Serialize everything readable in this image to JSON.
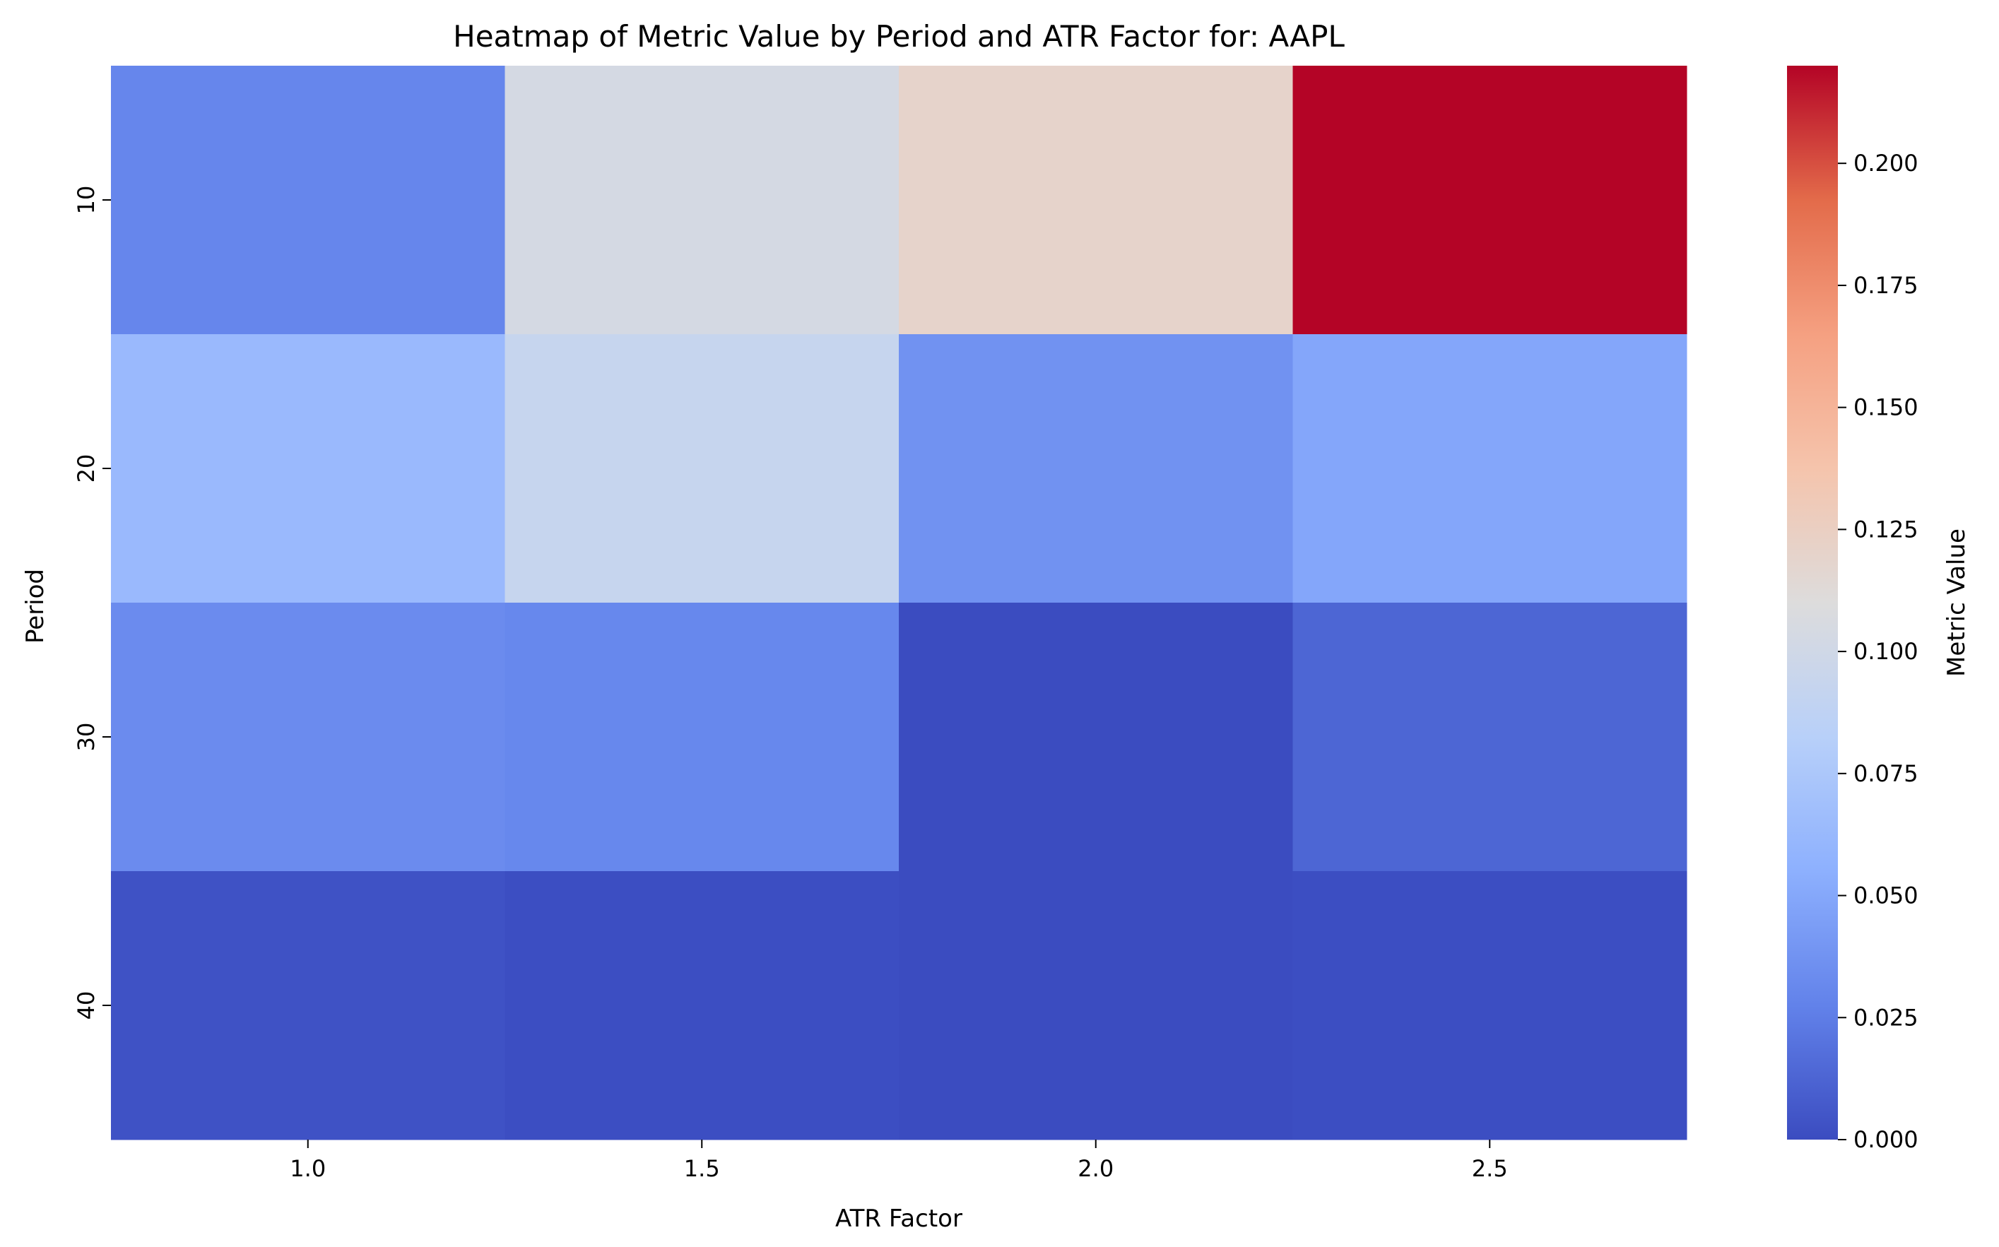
{
  "chart_data": {
    "type": "heatmap",
    "title": "Heatmap of Metric Value by Period and ATR Factor for: AAPL",
    "xlabel": "ATR Factor",
    "ylabel": "Period",
    "x_categories": [
      "1.0",
      "1.5",
      "2.0",
      "2.5"
    ],
    "y_categories": [
      "10",
      "20",
      "30",
      "40"
    ],
    "values": [
      [
        0.03,
        0.103,
        0.12,
        0.22
      ],
      [
        0.063,
        0.093,
        0.037,
        0.049
      ],
      [
        0.033,
        0.031,
        0.0,
        0.013
      ],
      [
        0.003,
        0.001,
        0.0,
        0.001
      ]
    ],
    "colorbar": {
      "label": "Metric Value",
      "range": [
        0,
        0.22
      ],
      "ticks": [
        "0.000",
        "0.025",
        "0.050",
        "0.075",
        "0.100",
        "0.125",
        "0.150",
        "0.175",
        "0.200"
      ],
      "colormap": "coolwarm",
      "colormap_stops": [
        "#3b4cc0",
        "#6282ea",
        "#8db0fe",
        "#b8d0f9",
        "#dddcdc",
        "#f5c4ac",
        "#f5a081",
        "#e36b4a",
        "#b40426"
      ]
    },
    "grid": false
  }
}
